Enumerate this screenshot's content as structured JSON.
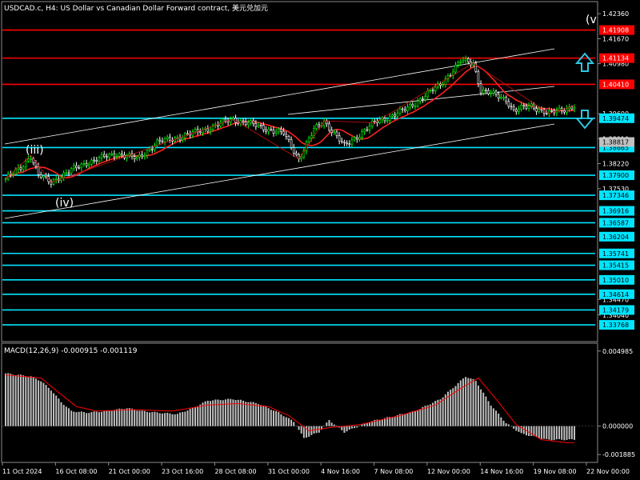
{
  "header": {
    "title": "USDCAD.c, H4:  US Dollar vs Canadian Dollar Forward contract, 美元兑加元"
  },
  "wave_labels": {
    "iii": "(iii)",
    "iv": "(iv)",
    "v": "(v"
  },
  "colors": {
    "background": "#000000",
    "bull_candle": "#00ff00",
    "bear_candle": "#ffffff",
    "channel": "#ffffff",
    "ma": "#ff2020",
    "resistance": "#ff0000",
    "support": "#00e5ff",
    "arrow": "#2ec7e6",
    "current_price_bg": "#c0c0c0",
    "histogram": "#c0c0c0",
    "signal": "#ff0000"
  },
  "chart_data": [
    {
      "type": "candlestick",
      "symbol": "USDCAD.c",
      "timeframe": "H4",
      "x_tick_labels": [
        "11 Oct 2024",
        "16 Oct 08:00",
        "21 Oct 00:00",
        "23 Oct 16:00",
        "28 Oct 08:00",
        "31 Oct 00:00",
        "4 Nov 16:00",
        "7 Nov 08:00",
        "12 Nov 00:00",
        "14 Nov 16:00",
        "19 Nov 08:00",
        "22 Nov 00:00"
      ],
      "y_tick_labels": [
        "1.42360",
        "1.41670",
        "1.40980",
        "1.39600",
        "1.38910",
        "1.38220",
        "1.37530",
        "1.34470",
        "1.34040"
      ],
      "ylim": [
        1.3335,
        1.4265
      ],
      "current_price": {
        "label": "1.38817",
        "value": 1.38817
      },
      "resistance_levels": [
        {
          "label": "1.41908",
          "value": 1.41908
        },
        {
          "label": "1.41134",
          "value": 1.41134
        },
        {
          "label": "1.40410",
          "value": 1.4041
        }
      ],
      "support_levels": [
        {
          "label": "1.39474",
          "value": 1.39474
        },
        {
          "label": "1.38665",
          "value": 1.38665
        },
        {
          "label": "1.37900",
          "value": 1.379
        },
        {
          "label": "1.37346",
          "value": 1.37346
        },
        {
          "label": "1.36916",
          "value": 1.36916
        },
        {
          "label": "1.36587",
          "value": 1.36587
        },
        {
          "label": "1.36204",
          "value": 1.36204
        },
        {
          "label": "1.35741",
          "value": 1.35741
        },
        {
          "label": "1.35415",
          "value": 1.35415
        },
        {
          "label": "1.35010",
          "value": 1.3501
        },
        {
          "label": "1.34614",
          "value": 1.34614
        },
        {
          "label": "1.34179",
          "value": 1.34179
        },
        {
          "label": "1.33768",
          "value": 1.33768
        }
      ],
      "price_path": [
        [
          0,
          1.378
        ],
        [
          6,
          1.381
        ],
        [
          10,
          1.3845
        ],
        [
          13,
          1.379
        ],
        [
          18,
          1.377
        ],
        [
          21,
          1.3785
        ],
        [
          32,
          1.3825
        ],
        [
          44,
          1.385
        ],
        [
          52,
          1.3835
        ],
        [
          60,
          1.388
        ],
        [
          74,
          1.3905
        ],
        [
          90,
          1.3945
        ],
        [
          100,
          1.3925
        ],
        [
          110,
          1.3905
        ],
        [
          116,
          1.3835
        ],
        [
          122,
          1.3915
        ],
        [
          126,
          1.394
        ],
        [
          130,
          1.3905
        ],
        [
          134,
          1.387
        ],
        [
          146,
          1.3935
        ],
        [
          158,
          1.397
        ],
        [
          172,
          1.404
        ],
        [
          180,
          1.4105
        ],
        [
          185,
          1.41
        ],
        [
          188,
          1.4025
        ],
        [
          198,
          1.4
        ],
        [
          201,
          1.3968
        ],
        [
          208,
          1.3982
        ],
        [
          215,
          1.396
        ],
        [
          222,
          1.3975
        ],
        [
          225,
          1.3982
        ]
      ]
    },
    {
      "type": "bar",
      "name": "MACD(12,26,9)",
      "values_label": "-0.000915 -0.001119",
      "y_tick_labels": [
        "0.004985",
        "0.000000",
        "-0.001885"
      ],
      "ylim": [
        -0.0023,
        0.0054
      ],
      "histogram": [
        [
          0,
          0.0035
        ],
        [
          10,
          0.0033
        ],
        [
          14,
          0.003
        ],
        [
          18,
          0.0024
        ],
        [
          22,
          0.0016
        ],
        [
          26,
          0.001
        ],
        [
          32,
          0.0009
        ],
        [
          40,
          0.001
        ],
        [
          48,
          0.0012
        ],
        [
          54,
          0.001
        ],
        [
          60,
          0.0009
        ],
        [
          68,
          0.0008
        ],
        [
          74,
          0.0012
        ],
        [
          80,
          0.0017
        ],
        [
          90,
          0.0018
        ],
        [
          100,
          0.0015
        ],
        [
          108,
          0.0009
        ],
        [
          114,
          0.0003
        ],
        [
          118,
          -0.0008
        ],
        [
          124,
          -0.0004
        ],
        [
          128,
          0.0004
        ],
        [
          134,
          -0.0004
        ],
        [
          144,
          0.0003
        ],
        [
          152,
          0.0006
        ],
        [
          162,
          0.001
        ],
        [
          172,
          0.0018
        ],
        [
          182,
          0.0033
        ],
        [
          186,
          0.003
        ],
        [
          192,
          0.0014
        ],
        [
          198,
          0.0002
        ],
        [
          204,
          -0.0005
        ],
        [
          214,
          -0.0009
        ],
        [
          222,
          -0.0009
        ]
      ],
      "signal": [
        [
          0,
          0.0034
        ],
        [
          14,
          0.0032
        ],
        [
          22,
          0.0021
        ],
        [
          28,
          0.0013
        ],
        [
          36,
          0.001
        ],
        [
          50,
          0.0011
        ],
        [
          66,
          0.001
        ],
        [
          80,
          0.0014
        ],
        [
          92,
          0.0015
        ],
        [
          104,
          0.0013
        ],
        [
          112,
          0.0007
        ],
        [
          120,
          -0.0003
        ],
        [
          128,
          -0.0001
        ],
        [
          140,
          0.0001
        ],
        [
          156,
          0.0007
        ],
        [
          170,
          0.0014
        ],
        [
          180,
          0.0025
        ],
        [
          187,
          0.0032
        ],
        [
          194,
          0.0018
        ],
        [
          202,
          0.0001
        ],
        [
          212,
          -0.0009
        ],
        [
          222,
          -0.0011
        ]
      ]
    }
  ]
}
